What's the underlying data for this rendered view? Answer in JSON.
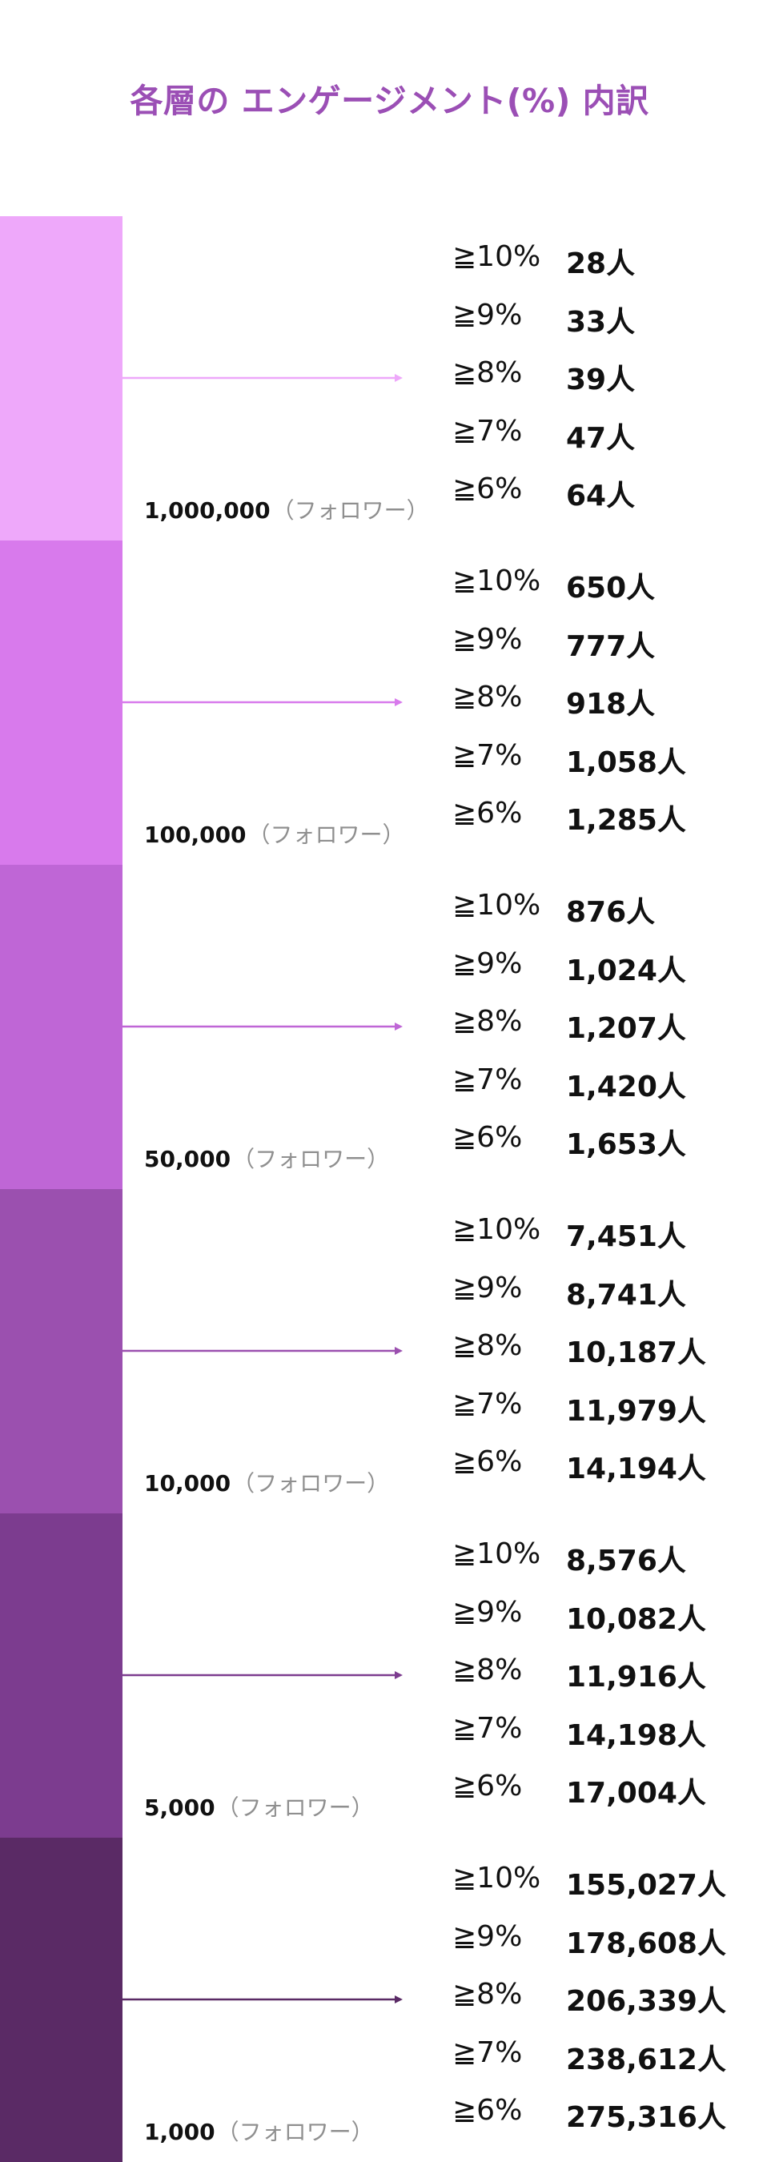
{
  "title": "各層の エンゲージメント(%) 内訳",
  "colors": {
    "title": "#9b4fb5",
    "label": "#111111",
    "unit": "#8f8f8f"
  },
  "chart_data": {
    "type": "table",
    "title": "各層の エンゲージメント(%) 内訳",
    "follower_unit": "（フォロワー）",
    "tiers": [
      {
        "followers": "1,000,000",
        "color": "#eea8fa",
        "rows": [
          {
            "threshold": "≧10%",
            "count": "28人"
          },
          {
            "threshold": "≧9%",
            "count": "33人"
          },
          {
            "threshold": "≧8%",
            "count": "39人"
          },
          {
            "threshold": "≧7%",
            "count": "47人"
          },
          {
            "threshold": "≧6%",
            "count": "64人"
          }
        ]
      },
      {
        "followers": "100,000",
        "color": "#d87aec",
        "rows": [
          {
            "threshold": "≧10%",
            "count": "650人"
          },
          {
            "threshold": "≧9%",
            "count": "777人"
          },
          {
            "threshold": "≧8%",
            "count": "918人"
          },
          {
            "threshold": "≧7%",
            "count": "1,058人"
          },
          {
            "threshold": "≧6%",
            "count": "1,285人"
          }
        ]
      },
      {
        "followers": "50,000",
        "color": "#bf66d6",
        "rows": [
          {
            "threshold": "≧10%",
            "count": "876人"
          },
          {
            "threshold": "≧9%",
            "count": "1,024人"
          },
          {
            "threshold": "≧8%",
            "count": "1,207人"
          },
          {
            "threshold": "≧7%",
            "count": "1,420人"
          },
          {
            "threshold": "≧6%",
            "count": "1,653人"
          }
        ]
      },
      {
        "followers": "10,000",
        "color": "#9b50af",
        "rows": [
          {
            "threshold": "≧10%",
            "count": "7,451人"
          },
          {
            "threshold": "≧9%",
            "count": "8,741人"
          },
          {
            "threshold": "≧8%",
            "count": "10,187人"
          },
          {
            "threshold": "≧7%",
            "count": "11,979人"
          },
          {
            "threshold": "≧6%",
            "count": "14,194人"
          }
        ]
      },
      {
        "followers": "5,000",
        "color": "#7c3c8f",
        "rows": [
          {
            "threshold": "≧10%",
            "count": "8,576人"
          },
          {
            "threshold": "≧9%",
            "count": "10,082人"
          },
          {
            "threshold": "≧8%",
            "count": "11,916人"
          },
          {
            "threshold": "≧7%",
            "count": "14,198人"
          },
          {
            "threshold": "≧6%",
            "count": "17,004人"
          }
        ]
      },
      {
        "followers": "1,000",
        "color": "#5a2a65",
        "rows": [
          {
            "threshold": "≧10%",
            "count": "155,027人"
          },
          {
            "threshold": "≧9%",
            "count": "178,608人"
          },
          {
            "threshold": "≧8%",
            "count": "206,339人"
          },
          {
            "threshold": "≧7%",
            "count": "238,612人"
          },
          {
            "threshold": "≧6%",
            "count": "275,316人"
          }
        ]
      }
    ]
  }
}
